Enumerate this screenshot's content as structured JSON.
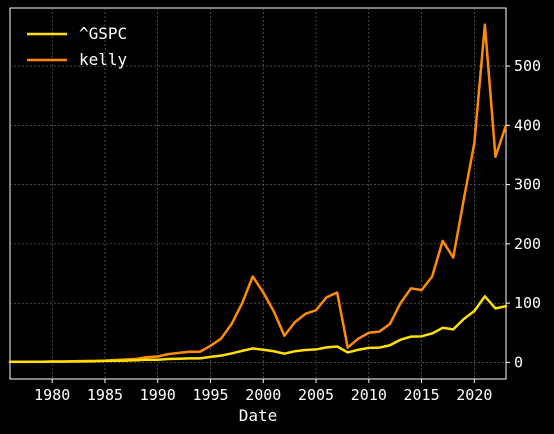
{
  "chart_data": {
    "type": "line",
    "xlabel": "Date",
    "ylabel": "",
    "xlim": [
      1976,
      2023
    ],
    "ylim": [
      -28,
      598
    ],
    "xticks": [
      1980,
      1985,
      1990,
      1995,
      2000,
      2005,
      2010,
      2015,
      2020
    ],
    "yticks": [
      0,
      100,
      200,
      300,
      400,
      500
    ],
    "grid": true,
    "legend_position": "top-left",
    "x": [
      1976,
      1977,
      1978,
      1979,
      1980,
      1981,
      1982,
      1983,
      1984,
      1985,
      1986,
      1987,
      1988,
      1989,
      1990,
      1991,
      1992,
      1993,
      1994,
      1995,
      1996,
      1997,
      1998,
      1999,
      2000,
      2001,
      2002,
      2003,
      2004,
      2005,
      2006,
      2007,
      2008,
      2009,
      2010,
      2011,
      2012,
      2013,
      2014,
      2015,
      2016,
      2017,
      2018,
      2019,
      2020,
      2021,
      2022,
      2023
    ],
    "series": [
      {
        "name": "^GSPC",
        "color": "#ffe000",
        "values": [
          1.0,
          0.9,
          1.0,
          1.1,
          1.3,
          1.3,
          1.5,
          1.8,
          1.9,
          2.5,
          2.9,
          3.1,
          3.6,
          4.6,
          4.5,
          5.8,
          6.2,
          6.8,
          6.8,
          9.4,
          11.5,
          15.1,
          19.5,
          23.6,
          21.4,
          18.8,
          14.7,
          18.9,
          20.9,
          21.9,
          25.4,
          26.8,
          16.8,
          21.3,
          24.5,
          25.0,
          28.9,
          38.3,
          43.5,
          44.0,
          48.8,
          58.4,
          55.8,
          73.2,
          86.7,
          111.5,
          91.1,
          95.0
        ]
      },
      {
        "name": "kelly",
        "color": "#ff8c00",
        "values": [
          1,
          1,
          1,
          1.2,
          1.5,
          1.6,
          2,
          2.3,
          2.6,
          3,
          4,
          5,
          6,
          9,
          10,
          14,
          16,
          18,
          18,
          28,
          40,
          65,
          100,
          145,
          118,
          86,
          45,
          68,
          82,
          88,
          110,
          118,
          25,
          40,
          50,
          52,
          65,
          100,
          125,
          122,
          145,
          205,
          177,
          275,
          370,
          570,
          347,
          400
        ]
      }
    ]
  }
}
